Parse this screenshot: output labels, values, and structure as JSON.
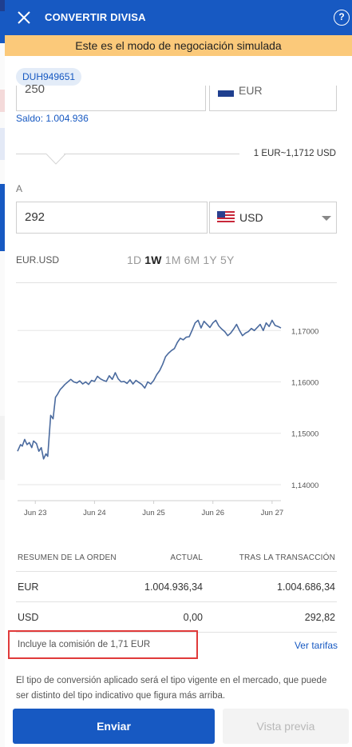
{
  "header": {
    "title": "CONVERTIR DIVISA",
    "help_icon": "question-mark-icon",
    "close_icon": "close-icon"
  },
  "banner": "Este es el modo de negociación simulada",
  "account": "DUH949651",
  "from": {
    "amount": "250",
    "currency": "EUR",
    "balance": "Saldo: 1.004.936"
  },
  "rate": "1 EUR~1,1712 USD",
  "to": {
    "label": "A",
    "amount": "292",
    "currency": "USD"
  },
  "chart_header": {
    "pair": "EUR.USD",
    "ranges": [
      "1D",
      "1W",
      "1M",
      "6M",
      "1Y",
      "5Y"
    ],
    "active_range": "1W"
  },
  "chart_data": {
    "type": "line",
    "title": "",
    "xlabel": "",
    "ylabel": "",
    "x_ticks": [
      "Jun 23",
      "Jun 24",
      "Jun 25",
      "Jun 26",
      "Jun 27"
    ],
    "y_ticks": [
      "1,14000",
      "1,15000",
      "1,16000",
      "1,17000"
    ],
    "ylim": [
      1.1375,
      1.1783
    ],
    "grid": "horizontal",
    "series": [
      {
        "color": "#4a6a9e",
        "x": [
          0,
          0.05,
          0.08,
          0.12,
          0.16,
          0.2,
          0.24,
          0.27,
          0.32,
          0.36,
          0.4,
          0.44,
          0.48,
          0.51,
          0.56,
          0.6,
          0.64,
          0.67,
          0.72,
          0.76,
          0.8,
          0.85,
          0.9,
          0.95,
          1.0,
          1.05,
          1.1,
          1.15,
          1.2,
          1.25,
          1.3,
          1.35,
          1.4,
          1.45,
          1.5,
          1.55,
          1.6,
          1.65,
          1.7,
          1.75,
          1.8,
          1.85,
          1.9,
          1.95,
          2.0,
          2.05,
          2.1,
          2.15,
          2.2,
          2.25,
          2.3,
          2.35,
          2.4,
          2.45,
          2.5,
          2.55,
          2.6,
          2.65,
          2.7,
          2.75,
          2.8,
          2.85,
          2.9,
          2.95,
          3.0,
          3.05,
          3.1,
          3.15,
          3.2,
          3.25,
          3.3,
          3.35,
          3.4,
          3.45,
          3.5,
          3.55,
          3.6,
          3.65,
          3.7,
          3.75,
          3.8,
          3.85,
          3.9,
          3.95,
          4.0,
          4.05,
          4.1,
          4.15,
          4.2,
          4.25,
          4.3,
          4.35,
          4.4,
          4.45
        ],
        "values": [
          1.1465,
          1.1478,
          1.1475,
          1.1488,
          1.1478,
          1.1482,
          1.1472,
          1.1485,
          1.148,
          1.1465,
          1.1472,
          1.145,
          1.146,
          1.1455,
          1.1535,
          1.1528,
          1.157,
          1.1575,
          1.1585,
          1.159,
          1.1595,
          1.16,
          1.1605,
          1.16,
          1.1598,
          1.1602,
          1.1596,
          1.16,
          1.1595,
          1.1603,
          1.1601,
          1.1611,
          1.1606,
          1.1603,
          1.1601,
          1.1612,
          1.1605,
          1.1618,
          1.1606,
          1.16,
          1.1601,
          1.1597,
          1.1604,
          1.1596,
          1.1603,
          1.1599,
          1.1595,
          1.1588,
          1.16,
          1.1596,
          1.1603,
          1.1614,
          1.1622,
          1.1634,
          1.1649,
          1.1656,
          1.1661,
          1.1665,
          1.1677,
          1.1685,
          1.1682,
          1.1687,
          1.1688,
          1.1701,
          1.1715,
          1.172,
          1.1705,
          1.1718,
          1.1712,
          1.1706,
          1.1715,
          1.172,
          1.1709,
          1.1703,
          1.1698,
          1.169,
          1.1695,
          1.1703,
          1.1712,
          1.17,
          1.169,
          1.1695,
          1.1698,
          1.1704,
          1.17,
          1.1706,
          1.1712,
          1.17,
          1.1715,
          1.1708,
          1.172,
          1.171,
          1.1708,
          1.1705
        ]
      }
    ]
  },
  "summary": {
    "headers": [
      "RESUMEN DE LA ORDEN",
      "ACTUAL",
      "TRAS LA TRANSACCIÓN"
    ],
    "rows": [
      {
        "label": "EUR",
        "actual": "1.004.936,34",
        "after": "1.004.686,34"
      },
      {
        "label": "USD",
        "actual": "0,00",
        "after": "292,82"
      }
    ]
  },
  "commission": "Incluye la comisión de 1,71 EUR",
  "tariffs_link": "Ver tarifas",
  "disclaimer": "El tipo de conversión aplicado será el tipo vigente en el mercado, que puede ser distinto del tipo indicativo que figura más arriba.",
  "buttons": {
    "send": "Enviar",
    "preview": "Vista previa"
  },
  "colors": {
    "brand": "#1759c2",
    "banner": "#fbc97a",
    "highlight": "#e03a3a",
    "line": "#4a6a9e"
  }
}
